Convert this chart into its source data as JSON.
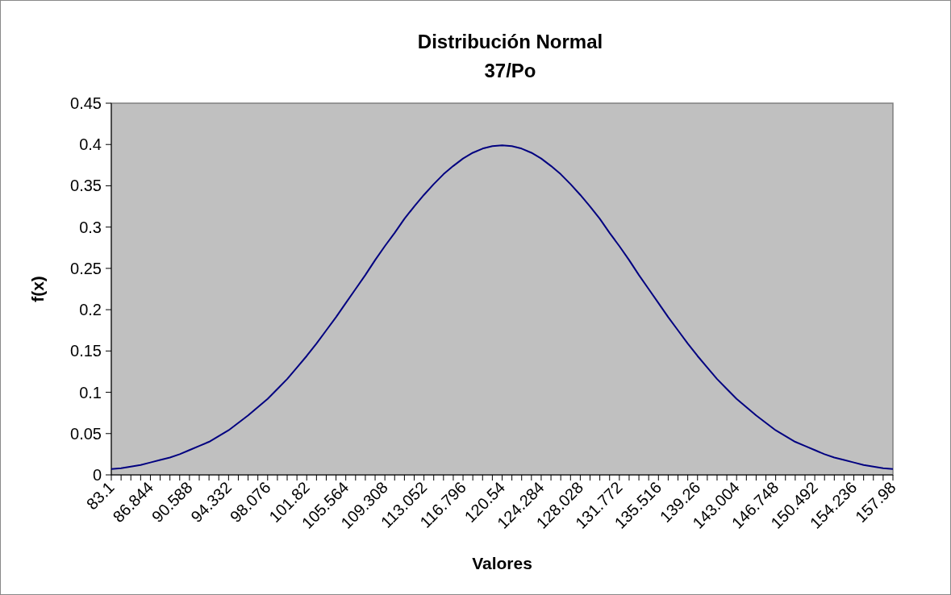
{
  "chart_data": {
    "type": "line",
    "title": "Distribución Normal",
    "subtitle": "37/Po",
    "xlabel": "Valores",
    "ylabel": "f(x)",
    "categories": [
      "83.1",
      null,
      null,
      null,
      "86.844",
      null,
      null,
      null,
      "90.588",
      null,
      null,
      null,
      "94.332",
      null,
      null,
      null,
      "98.076",
      null,
      null,
      null,
      "101.82",
      null,
      null,
      null,
      "105.564",
      null,
      null,
      null,
      "109.308",
      null,
      null,
      null,
      "113.052",
      null,
      null,
      null,
      "116.796",
      null,
      null,
      null,
      "120.54",
      null,
      null,
      null,
      "124.284",
      null,
      null,
      null,
      "128.028",
      null,
      null,
      null,
      "131.772",
      null,
      null,
      null,
      "135.516",
      null,
      null,
      null,
      "139.26",
      null,
      null,
      null,
      "143.004",
      null,
      null,
      null,
      "146.748",
      null,
      null,
      null,
      "150.492",
      null,
      null,
      null,
      "154.236",
      null,
      null,
      null,
      "157.98"
    ],
    "series": [
      {
        "color": "#000080",
        "values": [
          0.007,
          0.008,
          0.01,
          0.012,
          0.015,
          0.018,
          0.021,
          0.025,
          0.03,
          0.035,
          0.04,
          0.047,
          0.054,
          0.063,
          0.072,
          0.082,
          0.092,
          0.104,
          0.116,
          0.13,
          0.144,
          0.159,
          0.175,
          0.191,
          0.208,
          0.225,
          0.242,
          0.26,
          0.277,
          0.293,
          0.31,
          0.325,
          0.339,
          0.352,
          0.364,
          0.374,
          0.383,
          0.39,
          0.395,
          0.398,
          0.399,
          0.398,
          0.395,
          0.39,
          0.383,
          0.374,
          0.364,
          0.352,
          0.339,
          0.325,
          0.31,
          0.293,
          0.277,
          0.26,
          0.242,
          0.225,
          0.208,
          0.191,
          0.175,
          0.159,
          0.144,
          0.13,
          0.116,
          0.104,
          0.092,
          0.082,
          0.072,
          0.063,
          0.054,
          0.047,
          0.04,
          0.035,
          0.03,
          0.025,
          0.021,
          0.018,
          0.015,
          0.012,
          0.01,
          0.008,
          0.007
        ]
      }
    ],
    "ylim": [
      0,
      0.45
    ],
    "yticks": [
      0,
      0.05,
      0.1,
      0.15,
      0.2,
      0.25,
      0.3,
      0.35,
      0.4,
      0.45
    ],
    "marker": "none",
    "line_style": "solid"
  }
}
